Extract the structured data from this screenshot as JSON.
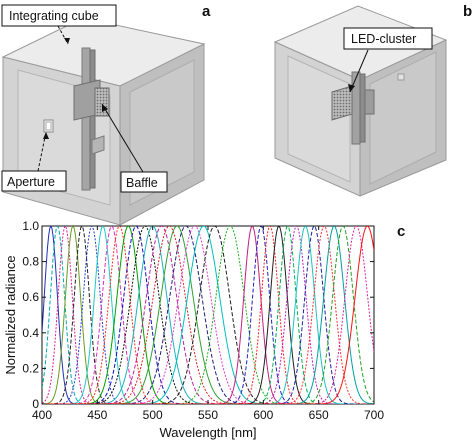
{
  "panels": {
    "a": {
      "letter": "a",
      "labels": {
        "cube": "Integrating cube",
        "aperture": "Aperture",
        "baffle": "Baffle"
      }
    },
    "b": {
      "letter": "b",
      "labels": {
        "led": "LED-cluster"
      }
    },
    "c": {
      "letter": "c"
    }
  },
  "chart_data": {
    "type": "line",
    "title": "",
    "xlabel": "Wavelength [nm]",
    "ylabel": "Normalized radiance",
    "xlim": [
      400,
      700
    ],
    "ylim": [
      0,
      1.0
    ],
    "x_ticks": [
      "400",
      "450",
      "500",
      "550",
      "600",
      "650",
      "700"
    ],
    "y_ticks": [
      "0",
      "0.2",
      "0.4",
      "0.6",
      "0.8",
      "1.0"
    ],
    "grid": false,
    "legend": "none",
    "peak_wavelengths_nm": [
      408,
      414,
      421,
      428,
      436,
      445,
      455,
      463,
      470,
      478,
      485,
      493,
      500,
      508,
      515,
      522,
      530,
      538,
      546,
      556,
      570,
      590,
      598,
      606,
      614,
      622,
      630,
      638,
      646,
      655,
      664,
      672,
      684,
      694
    ],
    "fwhm_nm": [
      14,
      15,
      15,
      16,
      16,
      18,
      18,
      20,
      22,
      24,
      26,
      30,
      30,
      32,
      34,
      34,
      34,
      34,
      34,
      32,
      30,
      18,
      18,
      18,
      18,
      18,
      20,
      20,
      20,
      22,
      22,
      22,
      24,
      26
    ],
    "colors": [
      "#1f2fb5",
      "#00a7b0",
      "#e02090",
      "#6a9a20",
      "#202020",
      "#2040d0",
      "#20c8c8",
      "#e030c0",
      "#ff3020",
      "#00a000",
      "#1010c0",
      "#101010",
      "#20b0c0",
      "#c020a0",
      "#e02020",
      "#30a030",
      "#202080",
      "#e040d0",
      "#00c0c0",
      "#202020",
      "#20b020",
      "#c02080",
      "#2020c0",
      "#ff2020",
      "#202020",
      "#00b050",
      "#c020c0",
      "#20c0c0",
      "#2020a0",
      "#ff3030",
      "#00a0a0",
      "#20a020",
      "#e020a0",
      "#ff1010"
    ]
  }
}
